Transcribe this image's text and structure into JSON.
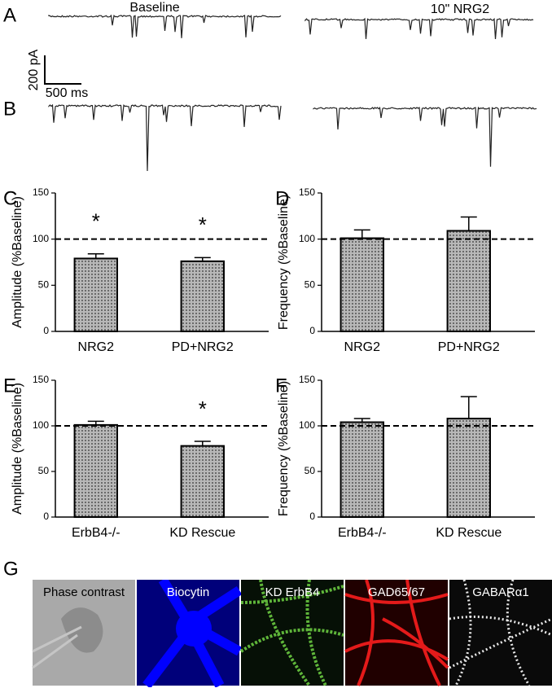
{
  "panels": [
    "A",
    "B",
    "C",
    "D",
    "E",
    "F",
    "G"
  ],
  "traces": {
    "left_label": "Baseline",
    "right_label": "10\" NRG2",
    "scale_y": "200 pA",
    "scale_x": "500 ms"
  },
  "images": [
    "Phase contrast",
    "Biocytin",
    "KD ErbB4",
    "GAD65/67",
    "GABARα1"
  ],
  "chart_data": [
    {
      "type": "bar",
      "ylabel": "Amplitude (%Baseline)",
      "categories": [
        "NRG2",
        "PD+NRG2"
      ],
      "values": [
        79,
        76
      ],
      "errors": [
        5,
        4
      ],
      "annotations": [
        "*",
        "*"
      ],
      "ylim": [
        0,
        150
      ],
      "yticks": [
        0,
        50,
        100,
        150
      ],
      "refline": 100,
      "color": "#9a9a9a"
    },
    {
      "type": "bar",
      "ylabel": "Frequency (%Baseline)",
      "categories": [
        "NRG2",
        "PD+NRG2"
      ],
      "values": [
        101,
        109
      ],
      "errors": [
        9,
        15
      ],
      "annotations": [
        null,
        null
      ],
      "ylim": [
        0,
        150
      ],
      "yticks": [
        0,
        50,
        100,
        150
      ],
      "refline": 100,
      "color": "#9a9a9a"
    },
    {
      "type": "bar",
      "ylabel": "Amplitude (%Baseline)",
      "categories": [
        "ErbB4-/-",
        "KD Rescue"
      ],
      "values": [
        101,
        78
      ],
      "errors": [
        4,
        5
      ],
      "annotations": [
        null,
        "*"
      ],
      "ylim": [
        0,
        150
      ],
      "yticks": [
        0,
        50,
        100,
        150
      ],
      "refline": 100,
      "color": "#9a9a9a"
    },
    {
      "type": "bar",
      "ylabel": "Frequency (%Baseline)",
      "categories": [
        "ErbB4-/-",
        "KD Rescue"
      ],
      "values": [
        104,
        108
      ],
      "errors": [
        4,
        24
      ],
      "annotations": [
        null,
        null
      ],
      "ylim": [
        0,
        150
      ],
      "yticks": [
        0,
        50,
        100,
        150
      ],
      "refline": 100,
      "color": "#9a9a9a"
    }
  ]
}
